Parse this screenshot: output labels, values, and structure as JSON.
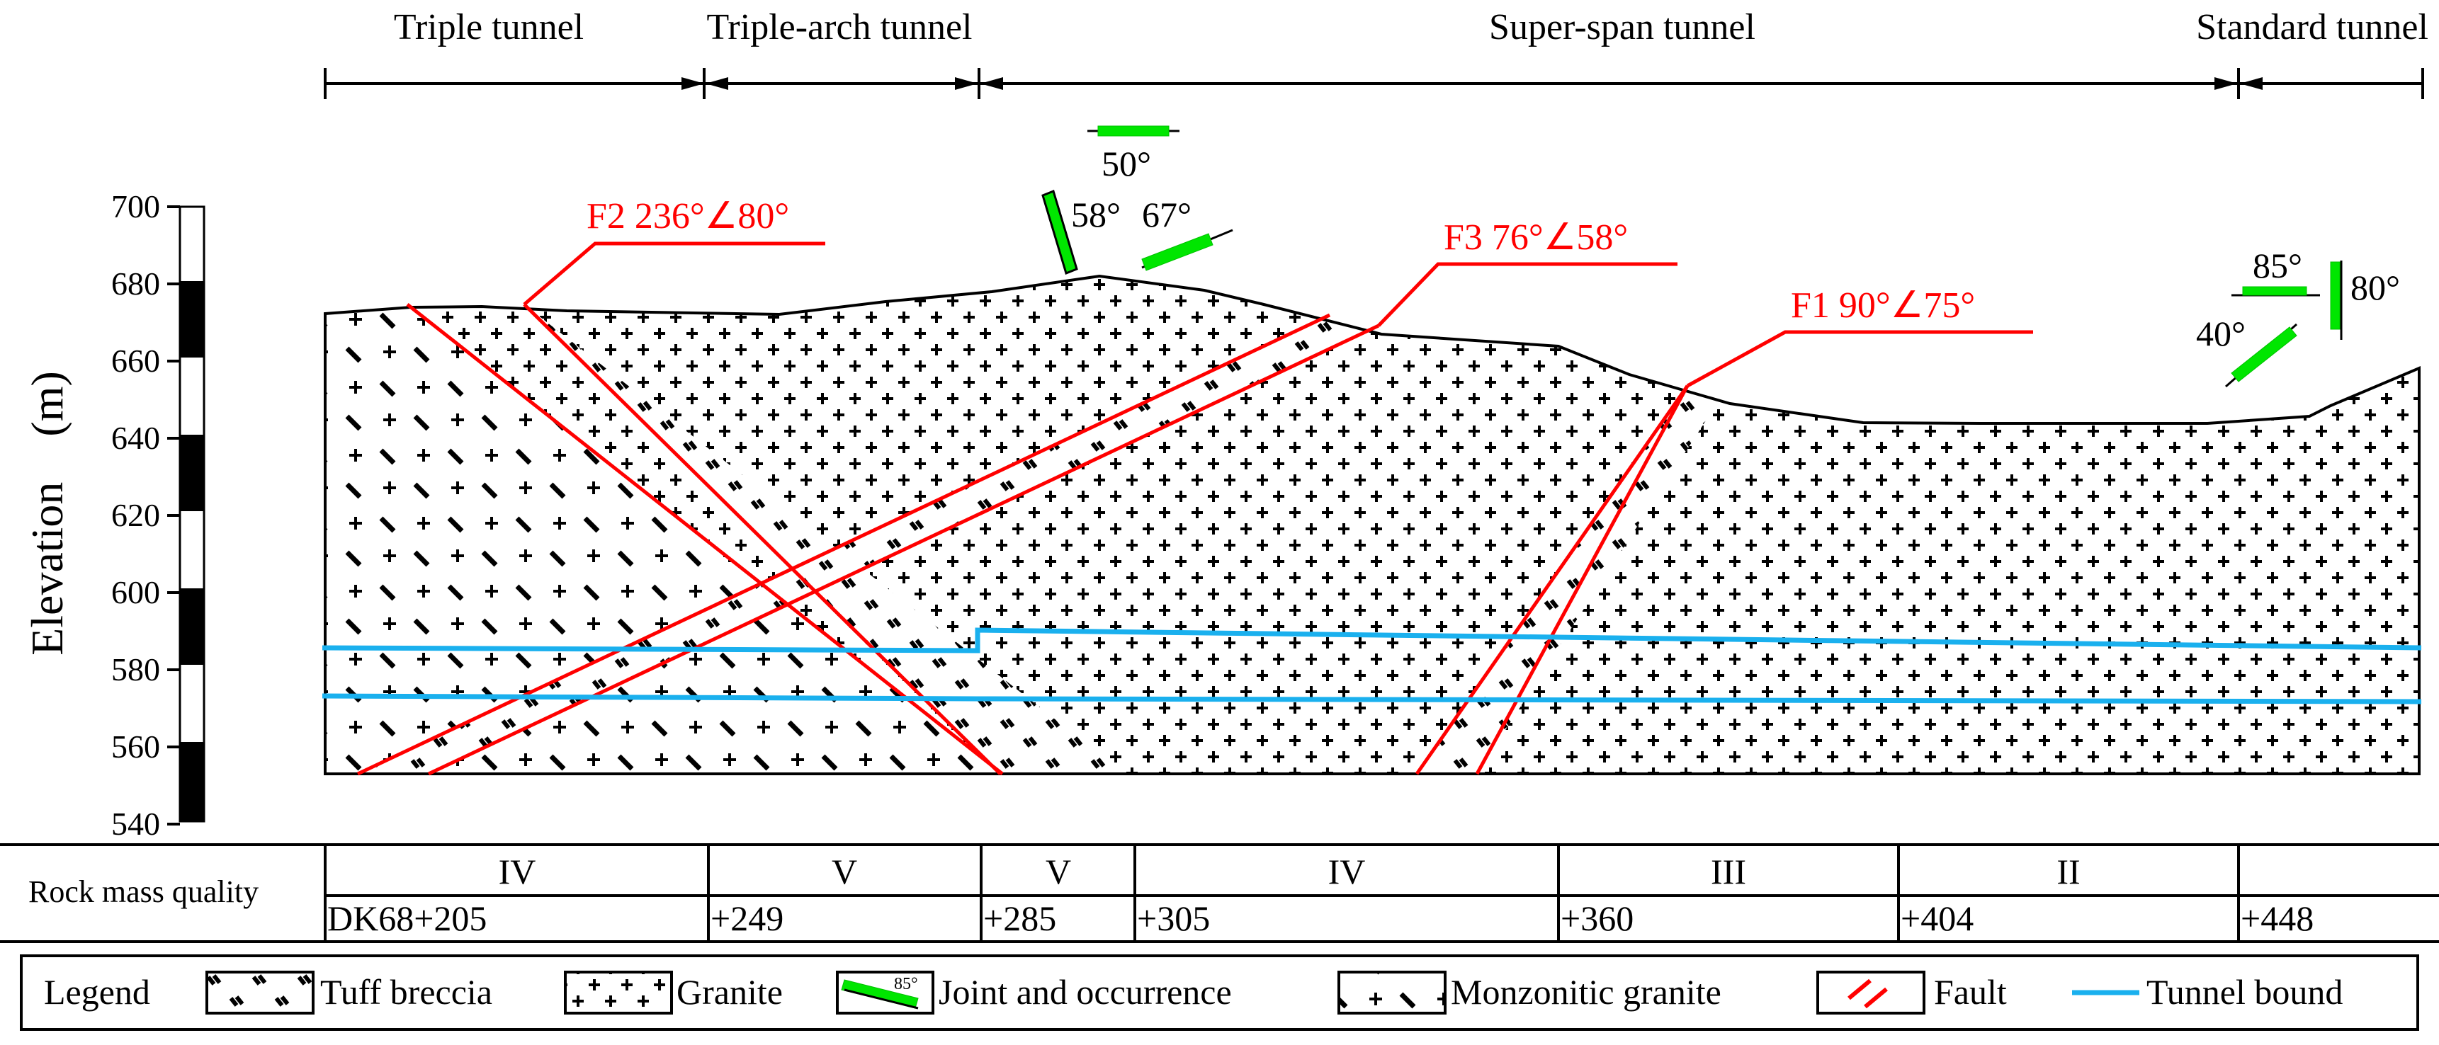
{
  "sections": [
    {
      "label": "Triple tunnel"
    },
    {
      "label": "Triple-arch tunnel"
    },
    {
      "label": "Super-span tunnel"
    },
    {
      "label": "Standard tunnel"
    }
  ],
  "elevation_axis": {
    "title": "Elevation　(m)",
    "ticks": [
      "700",
      "680",
      "660",
      "640",
      "620",
      "600",
      "580",
      "560",
      "540"
    ]
  },
  "faults": [
    {
      "id": "F2",
      "label": "F2 236°∠80°"
    },
    {
      "id": "F3",
      "label": "F3 76°∠58°"
    },
    {
      "id": "F1",
      "label": "F1 90°∠75°"
    }
  ],
  "joints": {
    "a": "50°",
    "b": "58°",
    "c": "67°",
    "d": "85°",
    "e": "80°",
    "f": "40°"
  },
  "quality_table": {
    "row_label": "Rock mass quality",
    "grades": [
      "IV",
      "V",
      "V",
      "IV",
      "III",
      "II"
    ],
    "chainages": [
      "DK68+205",
      "+249",
      "+285",
      "+305",
      "+360",
      "+404",
      "+448"
    ]
  },
  "legend": {
    "title": "Legend",
    "items": [
      "Tuff breccia",
      "Granite",
      "Joint and occurrence",
      "Monzonitic granite",
      "Fault",
      "Tunnel bound"
    ],
    "joint_swatch_angle": "85°"
  },
  "colors": {
    "fault": "#ff0000",
    "joint": "#00e600",
    "tunnel": "#1ab0ee",
    "ink": "#000000"
  }
}
